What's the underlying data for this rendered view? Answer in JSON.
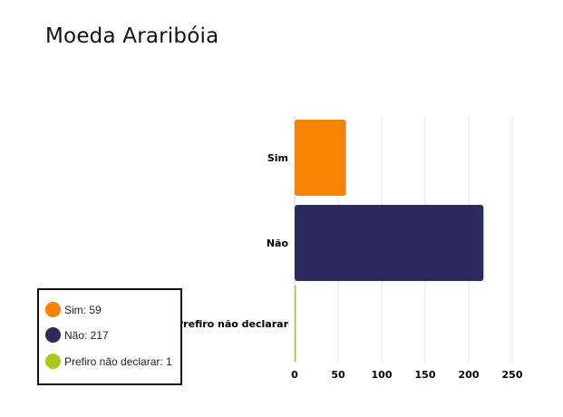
{
  "title": "Moeda Araribóia",
  "chart_data": {
    "type": "bar",
    "orientation": "horizontal",
    "categories": [
      "Sim",
      "Não",
      "Prefiro não declarar"
    ],
    "values": [
      59,
      217,
      1
    ],
    "colors": [
      "#f58200",
      "#2d2a5e",
      "#a8c81f"
    ],
    "xlim": [
      0,
      250
    ],
    "xticks": [
      0,
      50,
      100,
      150,
      200,
      250
    ],
    "grid": true,
    "legend_position": "bottom-left",
    "legend": [
      {
        "label": "Sim: 59",
        "color": "#f58200"
      },
      {
        "label": "Não: 217",
        "color": "#2d2a5e"
      },
      {
        "label": "Prefiro não declarar: 1",
        "color": "#a8c81f"
      }
    ]
  }
}
